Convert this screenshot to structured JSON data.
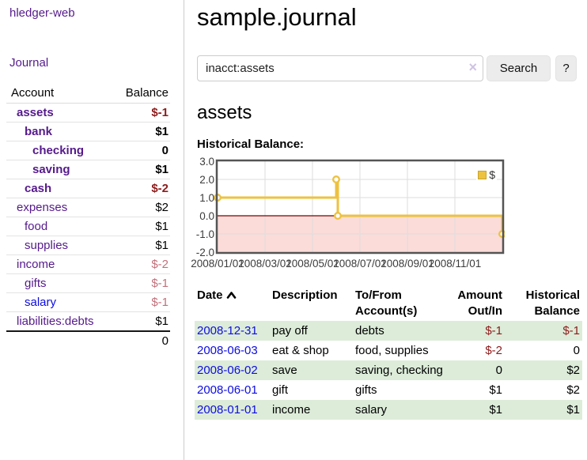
{
  "sidebar": {
    "brand": "hledger-web",
    "journal_link": "Journal",
    "accounts_table": {
      "col_account": "Account",
      "col_balance": "Balance",
      "rows": [
        {
          "name": "assets",
          "balance": "$-1",
          "depth": 1,
          "bold": true,
          "balance_style": "neg-dark",
          "link_color": "purple"
        },
        {
          "name": "bank",
          "balance": "$1",
          "depth": 2,
          "bold": true,
          "balance_style": "pos",
          "link_color": "purple"
        },
        {
          "name": "checking",
          "balance": "0",
          "depth": 3,
          "bold": true,
          "balance_style": "pos",
          "link_color": "purple"
        },
        {
          "name": "saving",
          "balance": "$1",
          "depth": 3,
          "bold": true,
          "balance_style": "pos",
          "link_color": "purple"
        },
        {
          "name": "cash",
          "balance": "$-2",
          "depth": 2,
          "bold": true,
          "balance_style": "neg-dark",
          "link_color": "purple"
        },
        {
          "name": "expenses",
          "balance": "$2",
          "depth": 1,
          "bold": false,
          "balance_style": "pos",
          "link_color": "purple"
        },
        {
          "name": "food",
          "balance": "$1",
          "depth": 2,
          "bold": false,
          "balance_style": "pos",
          "link_color": "purple"
        },
        {
          "name": "supplies",
          "balance": "$1",
          "depth": 2,
          "bold": false,
          "balance_style": "pos",
          "link_color": "purple"
        },
        {
          "name": "income",
          "balance": "$-2",
          "depth": 1,
          "bold": false,
          "balance_style": "neg-rose",
          "link_color": "purple"
        },
        {
          "name": "gifts",
          "balance": "$-1",
          "depth": 2,
          "bold": false,
          "balance_style": "neg-rose",
          "link_color": "purple"
        },
        {
          "name": "salary",
          "balance": "$-1",
          "depth": 2,
          "bold": false,
          "balance_style": "neg-rose",
          "link_color": "blue"
        },
        {
          "name": "liabilities:debts",
          "balance": "$1",
          "depth": 1,
          "bold": false,
          "balance_style": "pos",
          "link_color": "purple"
        }
      ],
      "total": "0"
    }
  },
  "header": {
    "title": "sample.journal"
  },
  "search": {
    "value": "inacct:assets",
    "clear_icon": "×",
    "button_label": "Search",
    "help_label": "?"
  },
  "account_page": {
    "heading": "assets",
    "chart_title": "Historical Balance:"
  },
  "chart_data": {
    "type": "line",
    "step": true,
    "title": "Historical Balance",
    "series": [
      {
        "name": "$",
        "color": "#edc240",
        "points": [
          [
            "2008-01-01",
            1
          ],
          [
            "2008-06-01",
            2
          ],
          [
            "2008-06-03",
            0
          ],
          [
            "2008-12-31",
            -1
          ]
        ]
      }
    ],
    "x_range": [
      "2008-01-01",
      "2009-01-01"
    ],
    "ylim": [
      -2,
      3
    ],
    "xticks": [
      {
        "label": "2008/01/01",
        "month": 0
      },
      {
        "label": "2008/03/01",
        "month": 2
      },
      {
        "label": "2008/05/01",
        "month": 4
      },
      {
        "label": "2008/07/01",
        "month": 6
      },
      {
        "label": "2008/09/01",
        "month": 8
      },
      {
        "label": "2008/11/01",
        "month": 10
      }
    ],
    "yticks": [
      {
        "label": "3.0",
        "value": 3
      },
      {
        "label": "2.0",
        "value": 2
      },
      {
        "label": "1.0",
        "value": 1
      },
      {
        "label": "0.0",
        "value": 0
      },
      {
        "label": "-1.0",
        "value": -1
      },
      {
        "label": "-2.0",
        "value": -2
      }
    ],
    "legend": {
      "label": "$",
      "position": "top-right"
    },
    "grid": true,
    "colors": {
      "line": "#edc240",
      "marker_fill": "#ffffff",
      "negative_region": "#fbdcd9",
      "zero_line": "#7c0000",
      "gridline": "#dddddd",
      "plot_border": "#545454",
      "legend_swatch": "#edc240"
    }
  },
  "transactions": {
    "columns": [
      {
        "label": "Date",
        "sorted": "asc"
      },
      {
        "label": "Description"
      },
      {
        "label": "To/From Account(s)"
      },
      {
        "label": "Amount Out/In"
      },
      {
        "label": "Historical Balance"
      }
    ],
    "rows": [
      {
        "date": "2008-12-31",
        "description": "pay off",
        "accounts": "debts",
        "amount": "$-1",
        "amount_neg": true,
        "balance": "$-1",
        "balance_neg": true,
        "shaded": true
      },
      {
        "date": "2008-06-03",
        "description": "eat & shop",
        "accounts": "food, supplies",
        "amount": "$-2",
        "amount_neg": true,
        "balance": "0",
        "balance_neg": false,
        "shaded": false
      },
      {
        "date": "2008-06-02",
        "description": "save",
        "accounts": "saving, checking",
        "amount": "0",
        "amount_neg": false,
        "balance": "$2",
        "balance_neg": false,
        "shaded": true
      },
      {
        "date": "2008-06-01",
        "description": "gift",
        "accounts": "gifts",
        "amount": "$1",
        "amount_neg": false,
        "balance": "$2",
        "balance_neg": false,
        "shaded": false
      },
      {
        "date": "2008-01-01",
        "description": "income",
        "accounts": "salary",
        "amount": "$1",
        "amount_neg": false,
        "balance": "$1",
        "balance_neg": false,
        "shaded": true
      }
    ]
  }
}
